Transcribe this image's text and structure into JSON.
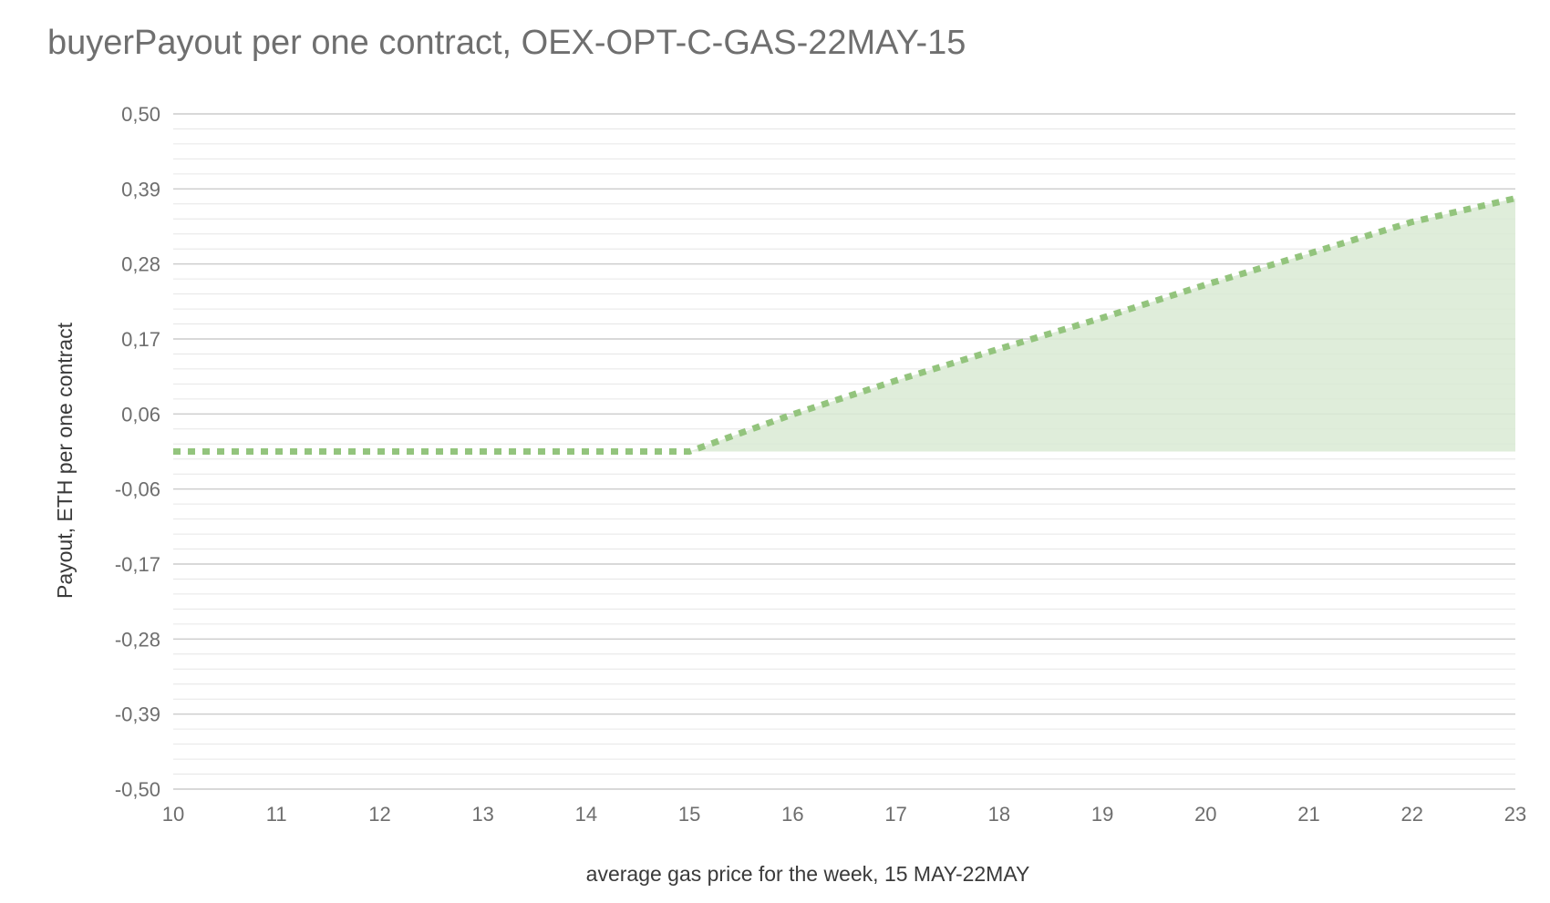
{
  "chart_data": {
    "type": "area",
    "title": "buyerPayout per one contract, OEX-OPT-C-GAS-22MAY-15",
    "xlabel": "average gas price for the week, 15 MAY-22MAY",
    "ylabel": "Payout, ETH per one contract",
    "xlim": [
      10,
      23
    ],
    "ylim": [
      -0.5,
      0.5
    ],
    "x_ticks": [
      "10",
      "11",
      "12",
      "13",
      "14",
      "15",
      "16",
      "17",
      "18",
      "19",
      "20",
      "21",
      "22",
      "23"
    ],
    "y_ticks": [
      "0,50",
      "0,39",
      "0,28",
      "0,17",
      "0,06",
      "-0,06",
      "-0,17",
      "-0,28",
      "-0,39",
      "-0,50"
    ],
    "grid": true,
    "legend": "none",
    "colors": {
      "line": "#93c47d",
      "fill": "#d9ead3",
      "grid_major": "#cccccc",
      "grid_minor": "#e6e6e6"
    },
    "series": [
      {
        "x": [
          10,
          11,
          12,
          13,
          14,
          15,
          16,
          17,
          18,
          19,
          20,
          21,
          22,
          23
        ],
        "values": [
          0,
          0,
          0,
          0,
          0,
          0,
          0.055,
          0.105,
          0.152,
          0.198,
          0.247,
          0.293,
          0.34,
          0.375
        ]
      }
    ]
  }
}
